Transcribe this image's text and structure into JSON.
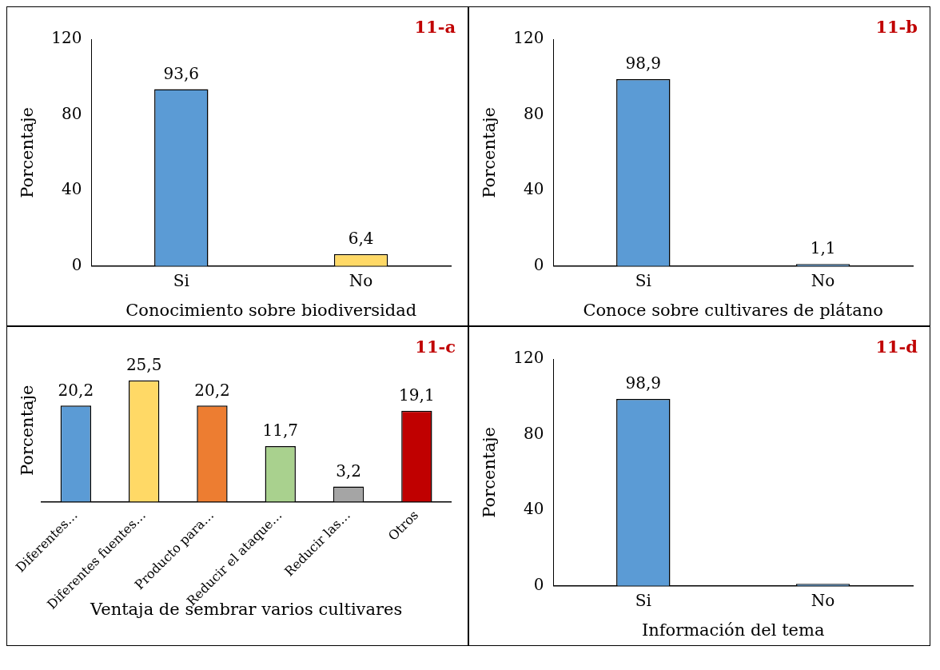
{
  "chart_data": [
    {
      "type": "bar",
      "xlabel": "Conocimiento sobre biodiversidad",
      "ylabel": "Porcentaje",
      "categories": [
        "Si",
        "No"
      ],
      "values": [
        93.6,
        6.4
      ],
      "colors": [
        "#5b9bd5",
        "#ffd966"
      ],
      "value_labels": [
        "93,6",
        "6,4"
      ],
      "ylim": [
        0,
        120
      ],
      "yticks": [
        0,
        40,
        80,
        120
      ],
      "grid": false,
      "legend": false,
      "annotations": [
        "11-a"
      ]
    },
    {
      "type": "bar",
      "xlabel": "Conoce sobre cultivares de plátano",
      "ylabel": "Porcentaje",
      "categories": [
        "Si",
        "No"
      ],
      "values": [
        98.9,
        1.1
      ],
      "colors": [
        "#5b9bd5",
        "#5b9bd5"
      ],
      "value_labels": [
        "98,9",
        "1,1"
      ],
      "ylim": [
        0,
        120
      ],
      "yticks": [
        0,
        40,
        80,
        120
      ],
      "grid": false,
      "legend": false,
      "annotations": [
        "11-b"
      ]
    },
    {
      "type": "bar",
      "xlabel": "Ventaja de sembrar varios cultivares",
      "ylabel": "Porcentaje",
      "categories": [
        "Diferentes…",
        "Diferentes fuentes…",
        "Producto para…",
        "Reducir el ataque…",
        "Reducir las…",
        "Otros"
      ],
      "values": [
        20.2,
        25.5,
        20.2,
        11.7,
        3.2,
        19.1
      ],
      "colors": [
        "#5b9bd5",
        "#ffd966",
        "#ed7d31",
        "#a9d18e",
        "#a5a5a5",
        "#c00000"
      ],
      "value_labels": [
        "20,2",
        "25,5",
        "20,2",
        "11,7",
        "3,2",
        "19,1"
      ],
      "grid": false,
      "legend": false,
      "tick_labels": "x",
      "annotations": [
        "11-c"
      ]
    },
    {
      "type": "bar",
      "xlabel": "Información del tema",
      "ylabel": "Porcentaje",
      "categories": [
        "Si",
        "No"
      ],
      "values": [
        98.9,
        1.1
      ],
      "colors": [
        "#5b9bd5",
        "#5b9bd5"
      ],
      "value_labels": [
        "98,9",
        null
      ],
      "ylim": [
        0,
        120
      ],
      "yticks": [
        0,
        40,
        80,
        120
      ],
      "grid": false,
      "legend": false,
      "annotations": [
        "11-d"
      ]
    }
  ]
}
